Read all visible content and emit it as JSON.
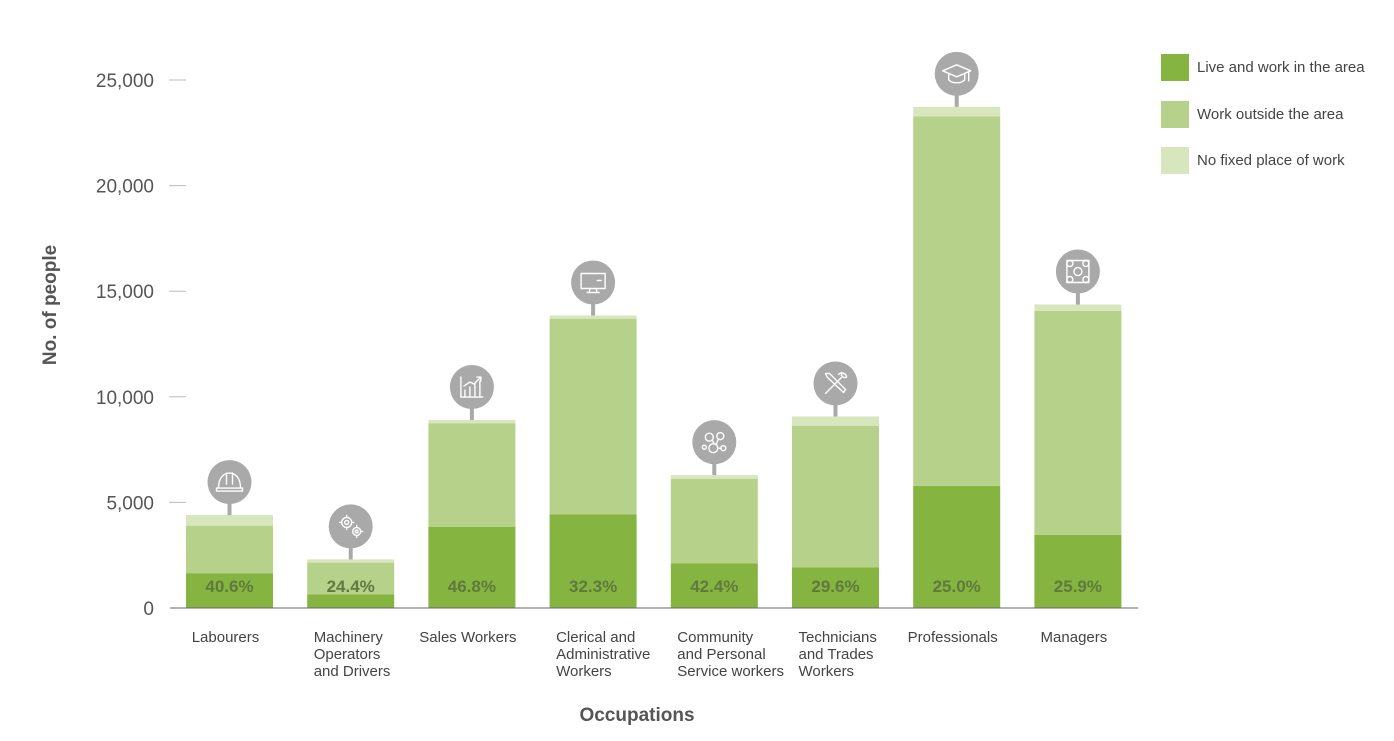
{
  "chart_data": {
    "type": "bar",
    "stacked": true,
    "xlabel": "Occupations",
    "ylabel": "No. of people",
    "ylim": [
      0,
      25000
    ],
    "yticks": [
      "0",
      "5,000",
      "10,000",
      "15,000",
      "20,000",
      "25,000"
    ],
    "ytick_values": [
      0,
      5000,
      10000,
      15000,
      20000,
      25000
    ],
    "legend_position": "top-right",
    "categories": [
      [
        "Labourers"
      ],
      [
        "Machinery",
        "Operators",
        "and Drivers"
      ],
      [
        "Sales Workers"
      ],
      [
        "Clerical and",
        "Administrative",
        "Workers"
      ],
      [
        "Community",
        "and Personal",
        "Service workers"
      ],
      [
        "Technicians",
        "and Trades",
        "Workers"
      ],
      [
        "Professionals"
      ],
      [
        "Managers"
      ]
    ],
    "icons": [
      "hard-hat-icon",
      "gears-icon",
      "growth-chart-icon",
      "computer-monitor-icon",
      "people-network-icon",
      "tools-icon",
      "graduation-cap-icon",
      "team-network-icon"
    ],
    "series": [
      {
        "name": "Live and work in the area",
        "color": "#86b440",
        "values": [
          1650,
          650,
          3850,
          4430,
          2120,
          1920,
          5780,
          3470
        ]
      },
      {
        "name": "Work outside the area",
        "color": "#b6d18a",
        "values": [
          2250,
          1500,
          4900,
          9270,
          4000,
          6700,
          17500,
          10600
        ]
      },
      {
        "name": "No fixed place of work",
        "color": "#d7e6bd",
        "values": [
          500,
          150,
          150,
          150,
          170,
          450,
          450,
          300
        ]
      }
    ],
    "percent_labels": [
      "40.6%",
      "24.4%",
      "46.8%",
      "32.3%",
      "42.4%",
      "29.6%",
      "25.0%",
      "25.9%"
    ]
  }
}
